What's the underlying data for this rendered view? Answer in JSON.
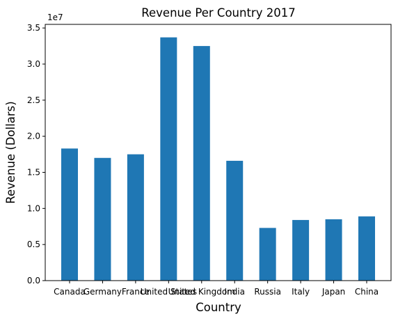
{
  "chart_data": {
    "type": "bar",
    "title": "Revenue Per Country 2017",
    "xlabel": "Country",
    "ylabel": "Revenue (Dollars)",
    "y_multiplier_label": "1e7",
    "categories": [
      "Canada",
      "Germany",
      "France",
      "United States",
      "United Kingdom",
      "India",
      "Russia",
      "Italy",
      "Japan",
      "China"
    ],
    "values": [
      18300000,
      17000000,
      17500000,
      33700000,
      32500000,
      16600000,
      7300000,
      8400000,
      8500000,
      8900000
    ],
    "ylim": [
      0,
      35500000
    ],
    "yticks": [
      0,
      5000000,
      10000000,
      15000000,
      20000000,
      25000000,
      30000000,
      35000000
    ],
    "ytick_labels": [
      "0.0",
      "0.5",
      "1.0",
      "1.5",
      "2.0",
      "2.5",
      "3.0",
      "3.5"
    ],
    "bar_color": "#1f77b4",
    "grid": false,
    "legend": "none"
  }
}
